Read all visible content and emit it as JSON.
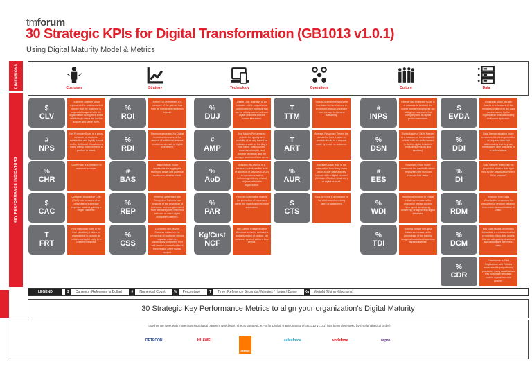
{
  "header": {
    "brand_light": "tm",
    "brand_bold": "forum",
    "title": "30 Strategic KPIs for Digital Transformation (GB1013 v1.0.1)",
    "subtitle": "Using Digital Maturity Model & Metrics"
  },
  "sidebar": {
    "dimensions": "DIMENSIONS",
    "kpis": "KEY PERFORMANCE INDICATORS"
  },
  "colors": {
    "red": "#e2202c",
    "orange": "#e5501f",
    "grey": "#6e6f73"
  },
  "dimensions": [
    {
      "label": "Customer",
      "icon": "customer-icon",
      "kpis": [
        {
          "unit": "$",
          "code": "CLV",
          "desc": "Customer Lifetime Value represents the total amount of money that the customer is expected to spend with the organization during their entire relationship minus the cost to acquire and serve them."
        },
        {
          "unit": "#",
          "code": "NPS",
          "desc": "Net Promoter Score is a proxy measure for customer satisfaction and loyalty based on the likelihood of customers being willing to recommend a product or brand."
        },
        {
          "unit": "%",
          "code": "CHR",
          "desc": "Churn Rate is a measure of customer turnover."
        },
        {
          "unit": "$",
          "code": "CAC",
          "desc": "Customer Acquisition Cost (CAC) is a measure of an organization's average expense towards gaining a single customer."
        },
        {
          "unit": "T",
          "code": "FRT",
          "desc": "First Response Time is the time (duration) it takes an organization to provide an initial meaningful reply to a customer request."
        }
      ]
    },
    {
      "label": "Strategy",
      "icon": "chart-growth-icon",
      "kpis": [
        {
          "unit": "%",
          "code": "ROI",
          "desc": "Return On Investment is a measure of the gain or loss from an investment relative to its cost."
        },
        {
          "unit": "%",
          "code": "RDI",
          "desc": "Revenue generated by Digital Investment measures the amount of additional revenue created as a result of digital investment."
        },
        {
          "unit": "#",
          "code": "BAS",
          "desc": "Brand Affinity Score represents the aggregate feeling of actual and potential customers about a brand."
        },
        {
          "unit": "%",
          "code": "REP",
          "desc": "Revenue generated with Ecosystem Partners is a measure of the proportion of enterprise revenue generated from services jointly delivered with one or more digital ecosystem partners."
        },
        {
          "unit": "%",
          "code": "CSS",
          "desc": "Customer Self-service Success measures the proportion of customer service requests which are successfully completed over self-service channels without the need for direct human support."
        }
      ]
    },
    {
      "label": "Technology",
      "icon": "devices-icon",
      "kpis": [
        {
          "unit": "%",
          "code": "DUJ",
          "desc": "Digital User Journeys is an indicator of the proportion of users/customer journeys that can be wholly carried out over digital channels without human interaction."
        },
        {
          "unit": "#",
          "code": "AMP",
          "desc": "App Market Performance reflects the quality and usability of an app based on indicators such as the App's star rating, total count of downloads/installs, and number of ratings and the average sentiment from users."
        },
        {
          "unit": "%",
          "code": "AoD",
          "desc": "Adoption of DevOps is a measure to indicate the level of adoption of DevOps (CI/CD) in operations and in technology delivery related projects within the organization."
        },
        {
          "unit": "%",
          "code": "PAR",
          "desc": "Process Automation Rate is the proportion of processes within the organization that are automated."
        },
        {
          "unit": "Kg/Cust",
          "code": "NCF",
          "desc": "Net Carbon Footprint is the difference between emissions and absorption of carbon, per customer served, within a time period."
        }
      ]
    },
    {
      "label": "Operations",
      "icon": "process-flow-icon",
      "kpis": [
        {
          "unit": "T",
          "code": "TTM",
          "desc": "Time-to-Market measures the time taken to move a new or enhanced product or service from concept to general availability."
        },
        {
          "unit": "T",
          "code": "ART",
          "desc": "Average Response Time is the amount of time it takes to provide results to a request made by a user or customer."
        },
        {
          "unit": "%",
          "code": "AUR",
          "desc": "Average Usage Rate is the measure of how many users out of a user base actively interact with a digital channel (Website, Chatbot, kiosk etc.) or digital product."
        },
        {
          "unit": "$",
          "code": "CTS",
          "desc": "Cost-to-Serve is a measure of the total cost of servicing users or customers."
        }
      ]
    },
    {
      "label": "Culture",
      "icon": "people-group-icon",
      "kpis": [
        {
          "unit": "#",
          "code": "INPS",
          "desc": "Internal Net Promoter Score is a measure to evaluate the extent to which employees are willing to recommend the company and its digital products/services."
        },
        {
          "unit": "%",
          "code": "DSN",
          "desc": "Digital Match of Skills Needed is a measure of the availability of staff with the skills needed to deliver digital initiatives (including products and services)."
        },
        {
          "unit": "#",
          "code": "EES",
          "desc": "Employee Effort Score measures the ease with which employees feel they can execute their tasks."
        },
        {
          "unit": "%",
          "code": "WDI",
          "desc": "Workforce involved in Digital Initiatives measures the proportion of total working time spent developing, delivering, or supporting digital initiatives."
        },
        {
          "unit": "%",
          "code": "TDI",
          "desc": "Training budget for Digital Initiatives measures the percentage of the training budget allocated and spent on digital initiatives."
        }
      ]
    },
    {
      "label": "Data",
      "icon": "database-server-icon",
      "kpis": [
        {
          "unit": "$",
          "code": "EVDA",
          "desc": "Economic Value of Data Assets is a measure of the monetary value of all the data assets owned by the organization evaluated using an income approach."
        },
        {
          "unit": "%",
          "code": "DDI",
          "desc": "Data Democratization Index measures the mean proportion of required data that stakeholders feel they can immediately able to access in a usable format."
        },
        {
          "unit": "%",
          "code": "DI",
          "desc": "Data Integrity measures the proportion of each data type held by the organization that is \"fit for purpose\"."
        },
        {
          "unit": "%",
          "code": "RDM",
          "desc": "Revenue from Data Monetization measures the proportion of revenue obtained from external monetization of data."
        },
        {
          "unit": "%",
          "code": "DCM",
          "desc": "Key Data Assets covered by Meta-data is a measure of the proportion of key data assets that are adequately described and catalogued with meta-data."
        },
        {
          "unit": "%",
          "code": "CDR",
          "desc": "Compliance to Data Regulations and Policies measures the proportion of processes using data that are fully compliant with data-related regulations and policies."
        }
      ]
    }
  ],
  "legend": {
    "label": "LEGEND",
    "items": [
      {
        "sym": "$",
        "text": "Currency (Reference is Dollar)"
      },
      {
        "sym": "#",
        "text": "Numerical Count"
      },
      {
        "sym": "%",
        "text": "Percentage"
      },
      {
        "sym": "T",
        "text": "Time (Reference Seconds / Minutes / Hours / Days)"
      },
      {
        "sym": "Kg",
        "text": "Weight (Using Kilograms)"
      }
    ]
  },
  "banner": "30 Strategic Key Performance Metrics to align your organization's Digital Maturity",
  "footer": {
    "text": "Together we work with more than 850 digital partners worldwide. The 30 Strategic KPIs for Digital Transformation (GB1013 v1.0.1) has been developed by (in alphabetical order):",
    "partners": [
      {
        "name": "DETECON",
        "color": "#1a3d8f"
      },
      {
        "name": "HUAWEI",
        "color": "#d0021b"
      },
      {
        "name": "orange",
        "color": "#ff7900"
      },
      {
        "name": "salesforce",
        "color": "#1798c1"
      },
      {
        "name": "vodafone",
        "color": "#e60000"
      },
      {
        "name": "wipro",
        "color": "#5a2d82"
      }
    ]
  }
}
